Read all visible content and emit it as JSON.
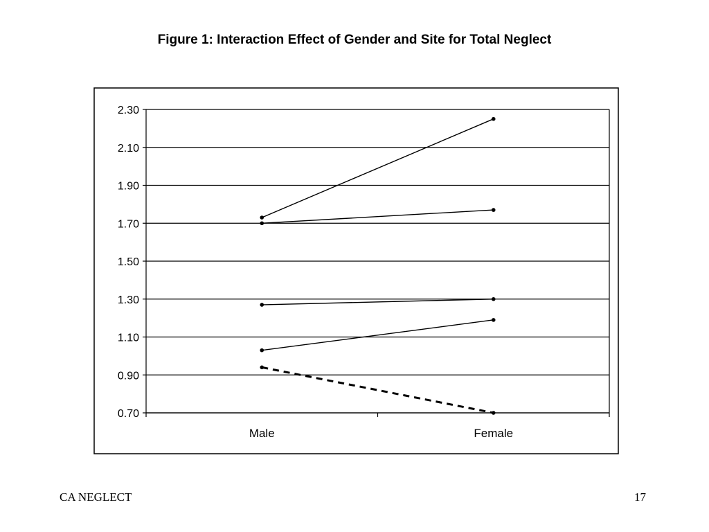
{
  "slide": {
    "footer_left": "CA NEGLECT",
    "page_number": "17"
  },
  "chart_data": {
    "type": "line",
    "title": "Figure 1: Interaction Effect of Gender and Site for Total Neglect",
    "xlabel": "",
    "ylabel": "",
    "categories": [
      "Male",
      "Female"
    ],
    "yticks": [
      "0.70",
      "0.90",
      "1.10",
      "1.30",
      "1.50",
      "1.70",
      "1.90",
      "2.10",
      "2.30"
    ],
    "ylim": [
      0.7,
      2.3
    ],
    "grid": true,
    "legend": "none",
    "series": [
      {
        "values": [
          1.73,
          2.25
        ],
        "style": "solid"
      },
      {
        "values": [
          1.7,
          1.77
        ],
        "style": "solid"
      },
      {
        "values": [
          1.27,
          1.3
        ],
        "style": "solid"
      },
      {
        "values": [
          1.03,
          1.19
        ],
        "style": "solid"
      },
      {
        "values": [
          0.94,
          0.7
        ],
        "style": "dashed"
      }
    ]
  }
}
